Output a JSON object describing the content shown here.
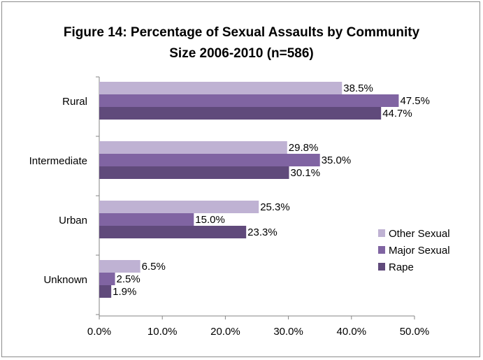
{
  "chart_data": {
    "type": "bar",
    "orientation": "horizontal",
    "title_line1": "Figure 14:  Percentage of Sexual Assaults by Community",
    "title_line2": "Size  2006-2010 (n=586)",
    "categories": [
      "Rural",
      "Intermediate",
      "Urban",
      "Unknown"
    ],
    "series": [
      {
        "name": "Other Sexual",
        "color": "#bfb2d3",
        "values": [
          38.5,
          29.8,
          25.3,
          6.5
        ],
        "labels": [
          "38.5%",
          "29.8%",
          "25.3%",
          "6.5%"
        ]
      },
      {
        "name": "Major Sexual",
        "color": "#8064a2",
        "values": [
          47.5,
          35.0,
          15.0,
          2.5
        ],
        "labels": [
          "47.5%",
          "35.0%",
          "15.0%",
          "2.5%"
        ]
      },
      {
        "name": "Rape",
        "color": "#604a7b",
        "values": [
          44.7,
          30.1,
          23.3,
          1.9
        ],
        "labels": [
          "44.7%",
          "30.1%",
          "23.3%",
          "1.9%"
        ]
      }
    ],
    "xlim": [
      0,
      50
    ],
    "xticks": [
      0,
      10,
      20,
      30,
      40,
      50
    ],
    "xtick_labels": [
      "0.0%",
      "10.0%",
      "20.0%",
      "30.0%",
      "40.0%",
      "50.0%"
    ],
    "grid": false,
    "legend_position": "right"
  }
}
